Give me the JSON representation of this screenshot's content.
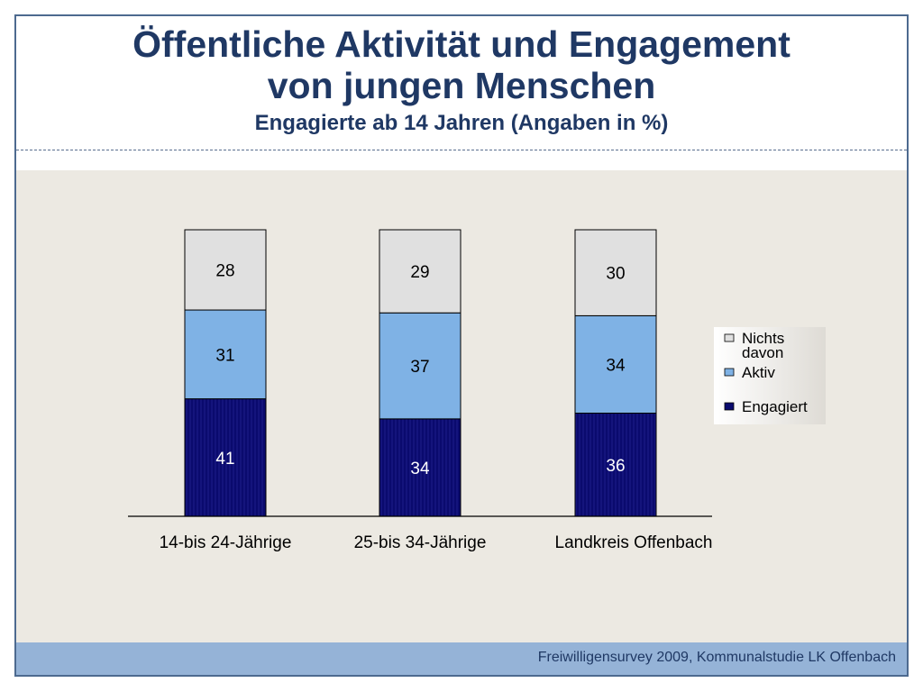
{
  "header": {
    "title_line1": "Öffentliche Aktivität und Engagement",
    "title_line2": "von jungen Menschen",
    "subtitle": "Engagierte ab 14 Jahren (Angaben in %)"
  },
  "footer": {
    "source": "Freiwilligensurvey 2009, Kommunalstudie LK Offenbach"
  },
  "chart_data": {
    "type": "bar",
    "stacked": true,
    "categories": [
      "14-bis 24-Jährige",
      "25-bis 34-Jährige",
      "Landkreis Offenbach"
    ],
    "series": [
      {
        "name": "Engagiert",
        "values": [
          41,
          34,
          36
        ],
        "color": "#0a0a6e",
        "label_color": "#ffffff"
      },
      {
        "name": "Aktiv",
        "values": [
          31,
          37,
          34
        ],
        "color": "#7fb2e5",
        "label_color": "#000000"
      },
      {
        "name": "Nichts davon",
        "values": [
          28,
          29,
          30
        ],
        "color": "#e0e0e0",
        "label_color": "#000000"
      }
    ],
    "legend": {
      "position": "right",
      "entries": [
        "Nichts davon",
        "Aktiv",
        "Engagiert"
      ]
    },
    "ylim": [
      0,
      100
    ],
    "grid": false,
    "data_labels": true
  }
}
